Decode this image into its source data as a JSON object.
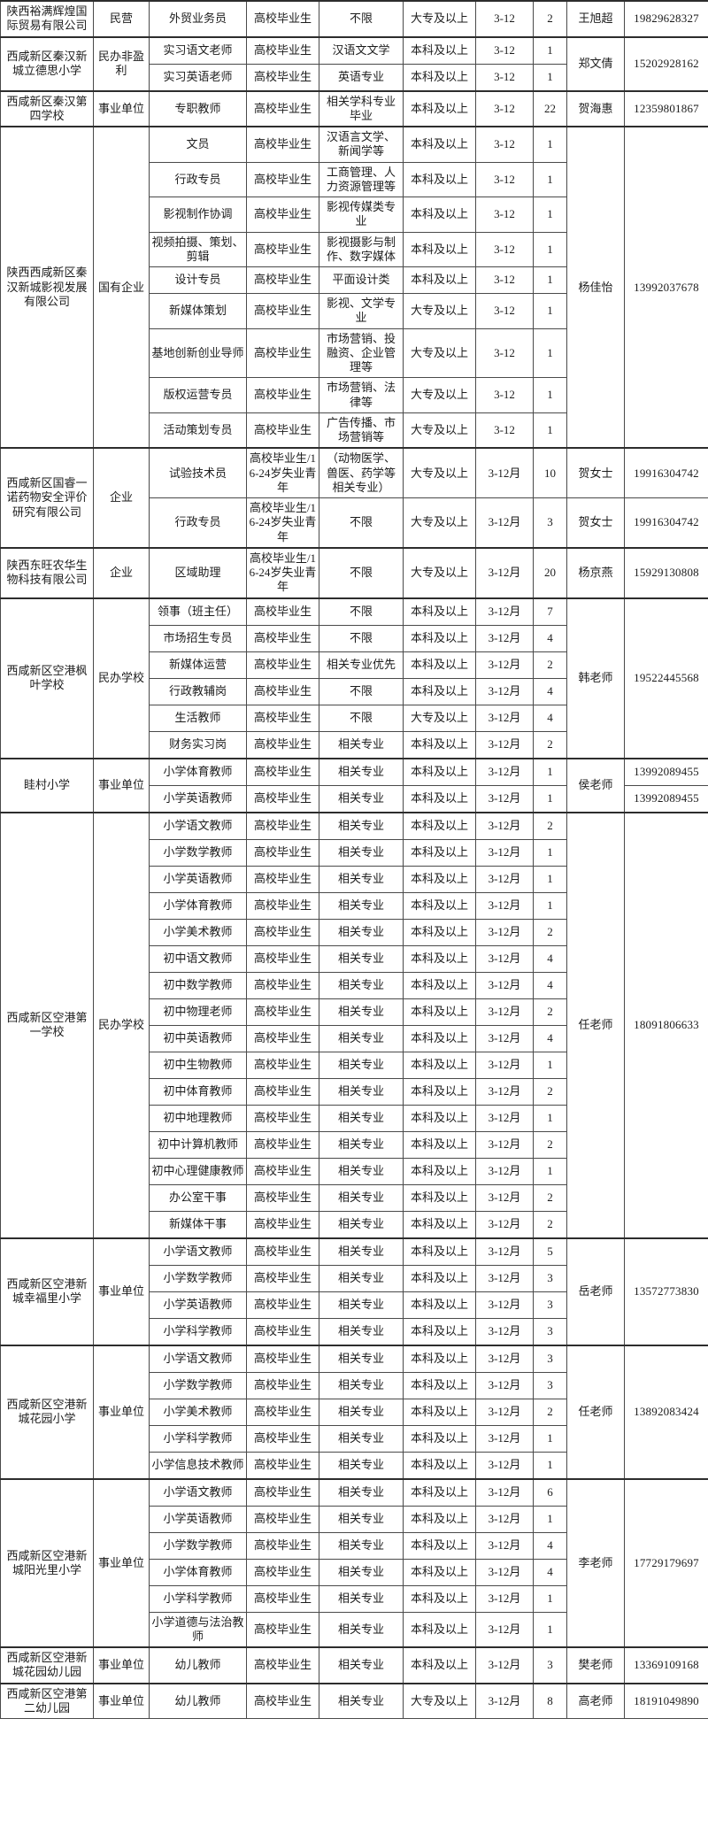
{
  "table": {
    "column_keys": [
      "company",
      "type",
      "position",
      "education",
      "major",
      "degree",
      "time",
      "count",
      "contact",
      "phone"
    ],
    "sections": [
      {
        "company": "陕西裕满辉煌国际贸易有限公司",
        "type": "民营",
        "rows": [
          {
            "position": "外贸业务员",
            "education": "高校毕业生",
            "major": "不限",
            "degree": "大专及以上",
            "time": "3-12",
            "count": "2",
            "contact": "王旭超",
            "phone": "19829628327"
          }
        ]
      },
      {
        "company": "西咸新区秦汉新城立德思小学",
        "type": "民办非盈利",
        "contact": "郑文倩",
        "phone": "15202928162",
        "rows": [
          {
            "position": "实习语文老师",
            "education": "高校毕业生",
            "major": "汉语文文学",
            "degree": "本科及以上",
            "time": "3-12",
            "count": "1"
          },
          {
            "position": "实习英语老师",
            "education": "高校毕业生",
            "major": "英语专业",
            "degree": "本科及以上",
            "time": "3-12",
            "count": "1"
          }
        ]
      },
      {
        "company": "西咸新区秦汉第四学校",
        "type": "事业单位",
        "rows": [
          {
            "position": "专职教师",
            "education": "高校毕业生",
            "major": "相关学科专业毕业",
            "degree": "本科及以上",
            "time": "3-12",
            "count": "22",
            "contact": "贺海惠",
            "phone": "12359801867"
          }
        ]
      },
      {
        "company": "陕西西咸新区秦汉新城影视发展有限公司",
        "type": "国有企业",
        "contact": "杨佳怡",
        "phone": "13992037678",
        "rows": [
          {
            "position": "文员",
            "education": "高校毕业生",
            "major": "汉语言文学、新闻学等",
            "degree": "本科及以上",
            "time": "3-12",
            "count": "1"
          },
          {
            "position": "行政专员",
            "education": "高校毕业生",
            "major": "工商管理、人力资源管理等",
            "degree": "本科及以上",
            "time": "3-12",
            "count": "1"
          },
          {
            "position": "影视制作协调",
            "education": "高校毕业生",
            "major": "影视传媒类专业",
            "degree": "本科及以上",
            "time": "3-12",
            "count": "1"
          },
          {
            "position": "视频拍摄、策划、剪辑",
            "education": "高校毕业生",
            "major": "影视摄影与制作、数字媒体",
            "degree": "本科及以上",
            "time": "3-12",
            "count": "1"
          },
          {
            "position": "设计专员",
            "education": "高校毕业生",
            "major": "平面设计类",
            "degree": "本科及以上",
            "time": "3-12",
            "count": "1"
          },
          {
            "position": "新媒体策划",
            "education": "高校毕业生",
            "major": "影视、文学专业",
            "degree": "大专及以上",
            "time": "3-12",
            "count": "1"
          },
          {
            "position": "基地创新创业导师",
            "education": "高校毕业生",
            "major": "市场营销、投融资、企业管理等",
            "degree": "大专及以上",
            "time": "3-12",
            "count": "1"
          },
          {
            "position": "版权运营专员",
            "education": "高校毕业生",
            "major": "市场营销、法律等",
            "degree": "大专及以上",
            "time": "3-12",
            "count": "1"
          },
          {
            "position": "活动策划专员",
            "education": "高校毕业生",
            "major": "广告传播、市场营销等",
            "degree": "大专及以上",
            "time": "3-12",
            "count": "1"
          }
        ]
      },
      {
        "company": "西咸新区国睿一诺药物安全评价研究有限公司",
        "type": "企业",
        "rows": [
          {
            "position": "试验技术员",
            "education": "高校毕业生/16-24岁失业青年",
            "major": "（动物医学、兽医、药学等相关专业）",
            "degree": "大专及以上",
            "time": "3-12月",
            "count": "10",
            "contact": "贺女士",
            "phone": "19916304742"
          },
          {
            "position": "行政专员",
            "education": "高校毕业生/16-24岁失业青年",
            "major": "不限",
            "degree": "大专及以上",
            "time": "3-12月",
            "count": "3",
            "contact": "贺女士",
            "phone": "19916304742"
          }
        ]
      },
      {
        "company": "陕西东旺农华生物科技有限公司",
        "type": "企业",
        "rows": [
          {
            "position": "区域助理",
            "education": "高校毕业生/16-24岁失业青年",
            "major": "不限",
            "degree": "大专及以上",
            "time": "3-12月",
            "count": "20",
            "contact": "杨京燕",
            "phone": "15929130808"
          }
        ]
      },
      {
        "company": "西咸新区空港枫叶学校",
        "type": "民办学校",
        "contact": "韩老师",
        "phone": "19522445568",
        "rows": [
          {
            "position": "领事（班主任）",
            "education": "高校毕业生",
            "major": "不限",
            "degree": "本科及以上",
            "time": "3-12月",
            "count": "7"
          },
          {
            "position": "市场招生专员",
            "education": "高校毕业生",
            "major": "不限",
            "degree": "本科及以上",
            "time": "3-12月",
            "count": "4"
          },
          {
            "position": "新媒体运营",
            "education": "高校毕业生",
            "major": "相关专业优先",
            "degree": "本科及以上",
            "time": "3-12月",
            "count": "2"
          },
          {
            "position": "行政教辅岗",
            "education": "高校毕业生",
            "major": "不限",
            "degree": "本科及以上",
            "time": "3-12月",
            "count": "4"
          },
          {
            "position": "生活教师",
            "education": "高校毕业生",
            "major": "不限",
            "degree": "大专及以上",
            "time": "3-12月",
            "count": "4"
          },
          {
            "position": "财务实习岗",
            "education": "高校毕业生",
            "major": "相关专业",
            "degree": "本科及以上",
            "time": "3-12月",
            "count": "2"
          }
        ]
      },
      {
        "company": "眭村小学",
        "type": "事业单位",
        "contact": "侯老师",
        "rows": [
          {
            "position": "小学体育教师",
            "education": "高校毕业生",
            "major": "相关专业",
            "degree": "本科及以上",
            "time": "3-12月",
            "count": "1",
            "phone": "13992089455"
          },
          {
            "position": "小学英语教师",
            "education": "高校毕业生",
            "major": "相关专业",
            "degree": "本科及以上",
            "time": "3-12月",
            "count": "1",
            "phone": "13992089455"
          }
        ]
      },
      {
        "company": "西咸新区空港第一学校",
        "type": "民办学校",
        "contact": "任老师",
        "phone": "18091806633",
        "rows": [
          {
            "position": "小学语文教师",
            "education": "高校毕业生",
            "major": "相关专业",
            "degree": "本科及以上",
            "time": "3-12月",
            "count": "2"
          },
          {
            "position": "小学数学教师",
            "education": "高校毕业生",
            "major": "相关专业",
            "degree": "本科及以上",
            "time": "3-12月",
            "count": "1"
          },
          {
            "position": "小学英语教师",
            "education": "高校毕业生",
            "major": "相关专业",
            "degree": "本科及以上",
            "time": "3-12月",
            "count": "1"
          },
          {
            "position": "小学体育教师",
            "education": "高校毕业生",
            "major": "相关专业",
            "degree": "本科及以上",
            "time": "3-12月",
            "count": "1"
          },
          {
            "position": "小学美术教师",
            "education": "高校毕业生",
            "major": "相关专业",
            "degree": "本科及以上",
            "time": "3-12月",
            "count": "2"
          },
          {
            "position": "初中语文教师",
            "education": "高校毕业生",
            "major": "相关专业",
            "degree": "本科及以上",
            "time": "3-12月",
            "count": "4"
          },
          {
            "position": "初中数学教师",
            "education": "高校毕业生",
            "major": "相关专业",
            "degree": "本科及以上",
            "time": "3-12月",
            "count": "4"
          },
          {
            "position": "初中物理老师",
            "education": "高校毕业生",
            "major": "相关专业",
            "degree": "本科及以上",
            "time": "3-12月",
            "count": "2"
          },
          {
            "position": "初中英语教师",
            "education": "高校毕业生",
            "major": "相关专业",
            "degree": "本科及以上",
            "time": "3-12月",
            "count": "4"
          },
          {
            "position": "初中生物教师",
            "education": "高校毕业生",
            "major": "相关专业",
            "degree": "本科及以上",
            "time": "3-12月",
            "count": "1"
          },
          {
            "position": "初中体育教师",
            "education": "高校毕业生",
            "major": "相关专业",
            "degree": "本科及以上",
            "time": "3-12月",
            "count": "2"
          },
          {
            "position": "初中地理教师",
            "education": "高校毕业生",
            "major": "相关专业",
            "degree": "本科及以上",
            "time": "3-12月",
            "count": "1"
          },
          {
            "position": "初中计算机教师",
            "education": "高校毕业生",
            "major": "相关专业",
            "degree": "本科及以上",
            "time": "3-12月",
            "count": "2"
          },
          {
            "position": "初中心理健康教师",
            "education": "高校毕业生",
            "major": "相关专业",
            "degree": "本科及以上",
            "time": "3-12月",
            "count": "1"
          },
          {
            "position": "办公室干事",
            "education": "高校毕业生",
            "major": "相关专业",
            "degree": "本科及以上",
            "time": "3-12月",
            "count": "2"
          },
          {
            "position": "新媒体干事",
            "education": "高校毕业生",
            "major": "相关专业",
            "degree": "本科及以上",
            "time": "3-12月",
            "count": "2"
          }
        ]
      },
      {
        "company": "西咸新区空港新城幸福里小学",
        "type": "事业单位",
        "contact": "岳老师",
        "phone": "13572773830",
        "rows": [
          {
            "position": "小学语文教师",
            "education": "高校毕业生",
            "major": "相关专业",
            "degree": "本科及以上",
            "time": "3-12月",
            "count": "5"
          },
          {
            "position": "小学数学教师",
            "education": "高校毕业生",
            "major": "相关专业",
            "degree": "本科及以上",
            "time": "3-12月",
            "count": "3"
          },
          {
            "position": "小学英语教师",
            "education": "高校毕业生",
            "major": "相关专业",
            "degree": "本科及以上",
            "time": "3-12月",
            "count": "3"
          },
          {
            "position": "小学科学教师",
            "education": "高校毕业生",
            "major": "相关专业",
            "degree": "本科及以上",
            "time": "3-12月",
            "count": "3"
          }
        ]
      },
      {
        "company": "西咸新区空港新城花园小学",
        "type": "事业单位",
        "contact": "任老师",
        "phone": "13892083424",
        "rows": [
          {
            "position": "小学语文教师",
            "education": "高校毕业生",
            "major": "相关专业",
            "degree": "本科及以上",
            "time": "3-12月",
            "count": "3"
          },
          {
            "position": "小学数学教师",
            "education": "高校毕业生",
            "major": "相关专业",
            "degree": "本科及以上",
            "time": "3-12月",
            "count": "3"
          },
          {
            "position": "小学美术教师",
            "education": "高校毕业生",
            "major": "相关专业",
            "degree": "本科及以上",
            "time": "3-12月",
            "count": "2"
          },
          {
            "position": "小学科学教师",
            "education": "高校毕业生",
            "major": "相关专业",
            "degree": "本科及以上",
            "time": "3-12月",
            "count": "1"
          },
          {
            "position": "小学信息技术教师",
            "education": "高校毕业生",
            "major": "相关专业",
            "degree": "本科及以上",
            "time": "3-12月",
            "count": "1"
          }
        ]
      },
      {
        "company": "西咸新区空港新城阳光里小学",
        "type": "事业单位",
        "contact": "李老师",
        "phone": "17729179697",
        "rows": [
          {
            "position": "小学语文教师",
            "education": "高校毕业生",
            "major": "相关专业",
            "degree": "本科及以上",
            "time": "3-12月",
            "count": "6"
          },
          {
            "position": "小学英语教师",
            "education": "高校毕业生",
            "major": "相关专业",
            "degree": "本科及以上",
            "time": "3-12月",
            "count": "1"
          },
          {
            "position": "小学数学教师",
            "education": "高校毕业生",
            "major": "相关专业",
            "degree": "本科及以上",
            "time": "3-12月",
            "count": "4"
          },
          {
            "position": "小学体育教师",
            "education": "高校毕业生",
            "major": "相关专业",
            "degree": "本科及以上",
            "time": "3-12月",
            "count": "4"
          },
          {
            "position": "小学科学教师",
            "education": "高校毕业生",
            "major": "相关专业",
            "degree": "本科及以上",
            "time": "3-12月",
            "count": "1"
          },
          {
            "position": "小学道德与法治教师",
            "education": "高校毕业生",
            "major": "相关专业",
            "degree": "本科及以上",
            "time": "3-12月",
            "count": "1"
          }
        ]
      },
      {
        "company": "西咸新区空港新城花园幼儿园",
        "type": "事业单位",
        "rows": [
          {
            "position": "幼儿教师",
            "education": "高校毕业生",
            "major": "相关专业",
            "degree": "本科及以上",
            "time": "3-12月",
            "count": "3",
            "contact": "樊老师",
            "phone": "13369109168"
          }
        ]
      },
      {
        "company": "西咸新区空港第二幼儿园",
        "type": "事业单位",
        "rows": [
          {
            "position": "幼儿教师",
            "education": "高校毕业生",
            "major": "相关专业",
            "degree": "大专及以上",
            "time": "3-12月",
            "count": "8",
            "contact": "高老师",
            "phone": "18191049890"
          }
        ]
      }
    ]
  }
}
